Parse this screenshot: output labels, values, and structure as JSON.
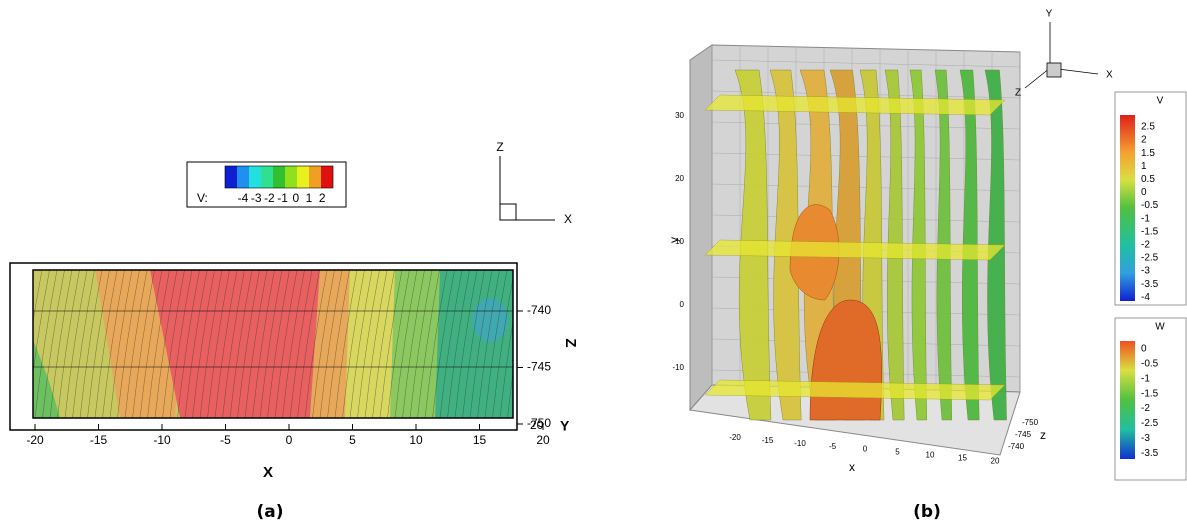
{
  "panel_a": {
    "legend": {
      "title": "V:",
      "labels": [
        "-4",
        "-3",
        "-2",
        "-1",
        "0",
        "1",
        "2"
      ]
    },
    "x_axis": {
      "label": "X",
      "ticks": [
        "-20",
        "-15",
        "-10",
        "-5",
        "0",
        "5",
        "10",
        "15",
        "20"
      ]
    },
    "z_axis": {
      "label": "Z",
      "ticks": [
        "-740",
        "-745",
        "-750"
      ]
    },
    "y_axis": {
      "label": "Y",
      "tick": "20"
    },
    "triad": {
      "vertical": "Z",
      "horizontal": "X"
    },
    "caption": "(a)"
  },
  "panel_b": {
    "y_axis": {
      "label": "y",
      "ticks": [
        "30",
        "20",
        "10",
        "0",
        "-10"
      ]
    },
    "x_axis": {
      "label": "x",
      "ticks": [
        "-20",
        "-15",
        "-10",
        "-5",
        "0",
        "5",
        "10",
        "15",
        "20"
      ]
    },
    "z_axis": {
      "label": "z",
      "ticks": [
        "-750",
        "-745",
        "-740"
      ]
    },
    "triad": {
      "up": "Y",
      "right": "X",
      "depth": "Z"
    },
    "legend_v": {
      "title": "V",
      "labels": [
        "2.5",
        "2",
        "1.5",
        "1",
        "0.5",
        "0",
        "-0.5",
        "-1",
        "-1.5",
        "-2",
        "-2.5",
        "-3",
        "-3.5",
        "-4"
      ]
    },
    "legend_w": {
      "title": "W",
      "labels": [
        "0",
        "-0.5",
        "-1",
        "-1.5",
        "-2",
        "-2.5",
        "-3",
        "-3.5"
      ]
    },
    "caption": "(b)"
  }
}
